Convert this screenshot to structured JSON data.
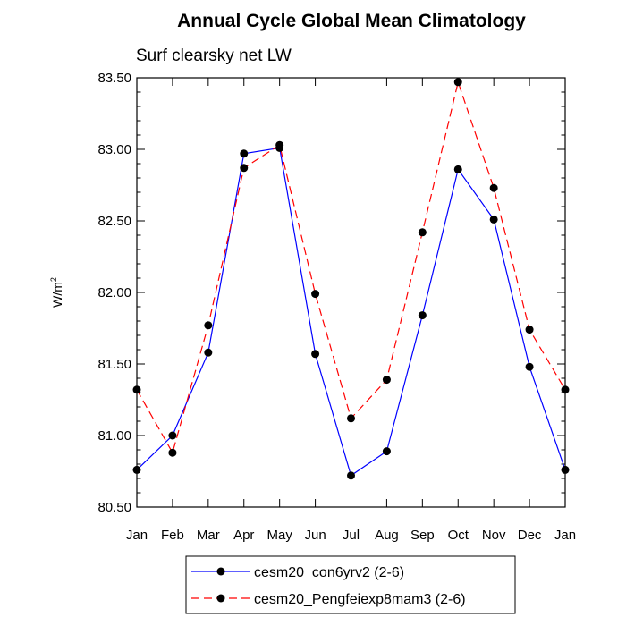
{
  "chart_data": {
    "type": "line",
    "title": "Annual Cycle Global Mean Climatology",
    "subtitle": "Surf clearsky net LW",
    "xlabel": "",
    "ylabel": "W/m",
    "ylabel_superscript": "2",
    "categories": [
      "Jan",
      "Feb",
      "Mar",
      "Apr",
      "May",
      "Jun",
      "Jul",
      "Aug",
      "Sep",
      "Oct",
      "Nov",
      "Dec",
      "Jan"
    ],
    "ylim": [
      80.5,
      83.5
    ],
    "yticks": [
      "80.50",
      "81.00",
      "81.50",
      "82.00",
      "82.50",
      "83.00",
      "83.50"
    ],
    "ytick_values": [
      80.5,
      81.0,
      81.5,
      82.0,
      82.5,
      83.0,
      83.5
    ],
    "legend_position": "bottom-center",
    "series": [
      {
        "name": "cesm20_con6yrv2 (2-6)",
        "color": "#0000ff",
        "dash": "solid",
        "values": [
          80.76,
          81.0,
          81.58,
          82.97,
          83.01,
          81.57,
          80.72,
          80.89,
          81.84,
          82.86,
          82.51,
          81.48,
          80.76
        ]
      },
      {
        "name": "cesm20_Pengfeiexp8mam3 (2-6)",
        "color": "#ff0000",
        "dash": "dashed",
        "values": [
          81.32,
          80.88,
          81.77,
          82.87,
          83.03,
          81.99,
          81.12,
          81.39,
          82.42,
          83.47,
          82.73,
          81.74,
          81.32
        ]
      }
    ]
  }
}
